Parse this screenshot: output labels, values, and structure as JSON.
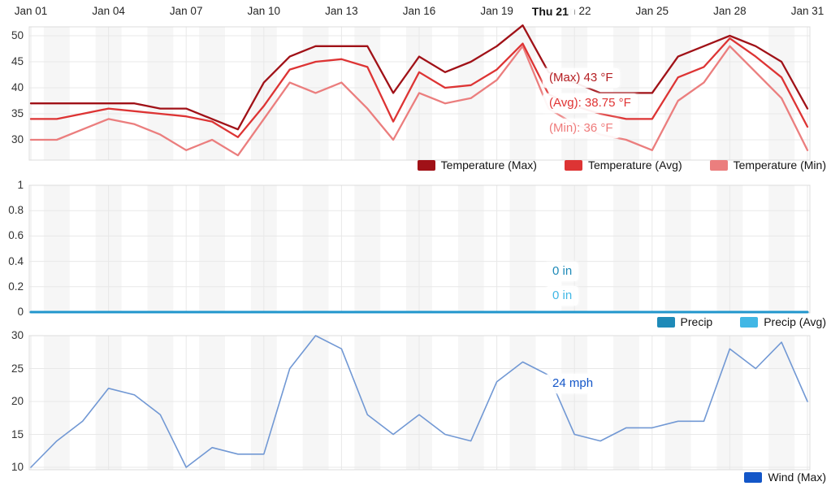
{
  "x_axis": {
    "month": "Jan",
    "days": [
      1,
      2,
      3,
      4,
      5,
      6,
      7,
      8,
      9,
      10,
      11,
      12,
      13,
      14,
      15,
      16,
      17,
      18,
      19,
      20,
      21,
      22,
      23,
      24,
      25,
      26,
      27,
      28,
      29,
      30,
      31
    ],
    "ticks": [
      {
        "label": "Jan 01",
        "day_index": 0
      },
      {
        "label": "Jan 04",
        "day_index": 3
      },
      {
        "label": "Jan 07",
        "day_index": 6
      },
      {
        "label": "Jan 10",
        "day_index": 9
      },
      {
        "label": "Jan 13",
        "day_index": 12
      },
      {
        "label": "Jan 16",
        "day_index": 15
      },
      {
        "label": "Jan 19",
        "day_index": 18
      },
      {
        "label": "Jan 22",
        "day_index": 21
      },
      {
        "label": "Jan 25",
        "day_index": 24
      },
      {
        "label": "Jan 28",
        "day_index": 27
      },
      {
        "label": "Jan 31",
        "day_index": 30
      }
    ],
    "hover": {
      "label": "Thu 21",
      "day_index": 20
    }
  },
  "chart_data": [
    {
      "id": "temperature",
      "type": "line",
      "unit": "°F",
      "yticks": [
        50,
        45,
        40,
        35,
        30
      ],
      "ytick_labels": [
        "50",
        "45",
        "40",
        "35",
        "30"
      ],
      "ylim": [
        26,
        52.5
      ],
      "grid": true,
      "legend_position": "bottom-right",
      "series": [
        {
          "name": "Temperature (Max)",
          "color": "#a01117",
          "values": [
            37,
            37,
            37,
            37,
            37,
            36,
            36,
            34,
            32,
            41,
            46,
            48,
            48,
            48,
            39,
            46,
            43,
            45,
            48,
            52,
            43,
            41,
            39,
            39,
            39,
            46,
            48,
            50,
            48,
            45,
            36
          ]
        },
        {
          "name": "Temperature (Avg)",
          "color": "#dd3434",
          "values": [
            34,
            34,
            35,
            36,
            35.5,
            35,
            34.5,
            33.5,
            30.5,
            36.5,
            43.5,
            45,
            45.5,
            44,
            33.5,
            43,
            40,
            40.5,
            43.5,
            48.5,
            38.75,
            36.5,
            35,
            34,
            34,
            42,
            44,
            49.5,
            46,
            42,
            32.5
          ]
        },
        {
          "name": "Temperature (Min)",
          "color": "#eb7e7e",
          "values": [
            30,
            30,
            32,
            34,
            33,
            31,
            28,
            30,
            27,
            34,
            41,
            39,
            41,
            36,
            30,
            39,
            37,
            38,
            41.5,
            48,
            36,
            33,
            31,
            30,
            28,
            37.5,
            41,
            48,
            43,
            38,
            28
          ]
        }
      ],
      "tooltip": [
        {
          "text": "(Max) 43 °F",
          "color": "#b51f23"
        },
        {
          "text": "(Avg): 38.75 °F",
          "color": "#e03434"
        },
        {
          "text": "(Min): 36 °F",
          "color": "#ef7b7b"
        }
      ]
    },
    {
      "id": "precip",
      "type": "line",
      "unit": "in",
      "yticks": [
        1,
        0.8,
        0.6,
        0.4,
        0.2,
        0
      ],
      "ytick_labels": [
        "1",
        "0.8",
        "0.6",
        "0.4",
        "0.2",
        "0"
      ],
      "ylim": [
        0,
        1.05
      ],
      "grid": true,
      "legend_position": "bottom-right",
      "series": [
        {
          "name": "Precip",
          "color": "#1e8ab8",
          "line_color": "#2196cc",
          "values": [
            0,
            0,
            0,
            0,
            0,
            0,
            0,
            0,
            0,
            0,
            0,
            0,
            0,
            0,
            0,
            0,
            0,
            0,
            0,
            0,
            0,
            0,
            0,
            0,
            0,
            0,
            0,
            0,
            0,
            0,
            0
          ]
        },
        {
          "name": "Precip (Avg)",
          "color": "#41b7e5",
          "line_color": "#45c2f0",
          "values": [
            0,
            0,
            0,
            0,
            0,
            0,
            0,
            0,
            0,
            0,
            0,
            0,
            0,
            0,
            0,
            0,
            0,
            0,
            0,
            0,
            0,
            0,
            0,
            0,
            0,
            0,
            0,
            0,
            0,
            0,
            0
          ]
        }
      ],
      "tooltip": [
        {
          "text": "0 in",
          "color": "#1e8ab8"
        },
        {
          "text": "0 in",
          "color": "#41b7e5"
        }
      ]
    },
    {
      "id": "wind",
      "type": "line",
      "unit": "mph",
      "yticks": [
        30,
        25,
        20,
        15,
        10
      ],
      "ytick_labels": [
        "30",
        "25",
        "20",
        "15",
        "10"
      ],
      "ylim": [
        9.5,
        30.5
      ],
      "grid": true,
      "legend_position": "bottom-right",
      "series": [
        {
          "name": "Wind (Max)",
          "color": "#1356c8",
          "line_color": "#7198d4",
          "values": [
            10,
            14,
            17,
            22,
            21,
            18,
            10,
            13,
            12,
            12,
            25,
            30,
            28,
            18,
            15,
            18,
            15,
            14,
            23,
            26,
            24,
            15,
            14,
            16,
            16,
            17,
            17,
            28,
            25,
            29,
            20
          ]
        }
      ],
      "tooltip": [
        {
          "text": "24 mph",
          "color": "#1356c8"
        }
      ]
    }
  ]
}
